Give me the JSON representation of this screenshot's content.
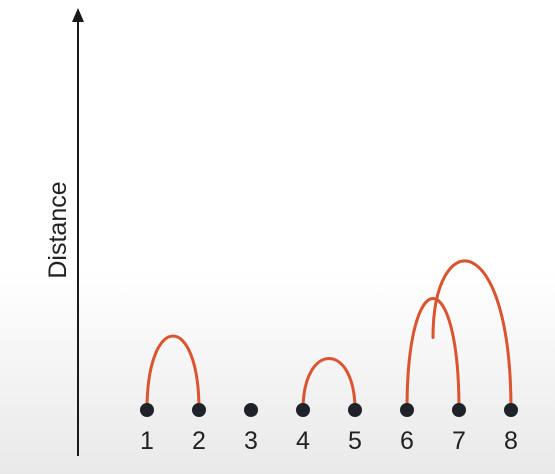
{
  "diagram": {
    "y_axis_label": "Distance",
    "points": [
      {
        "label": "1"
      },
      {
        "label": "2"
      },
      {
        "label": "3"
      },
      {
        "label": "4"
      },
      {
        "label": "5"
      },
      {
        "label": "6"
      },
      {
        "label": "7"
      },
      {
        "label": "8"
      }
    ],
    "merges": [
      {
        "from": "1",
        "to": "2",
        "height": 1.45
      },
      {
        "from": "4",
        "to": "5",
        "height": 1.0
      },
      {
        "from": "6",
        "to": "7",
        "height": 2.2
      },
      {
        "from": "6-7",
        "to": "8",
        "height": 3.1
      }
    ],
    "colors": {
      "point": "#1e2329",
      "arc": "#d9542f",
      "axis": "#1a1a1a"
    }
  }
}
